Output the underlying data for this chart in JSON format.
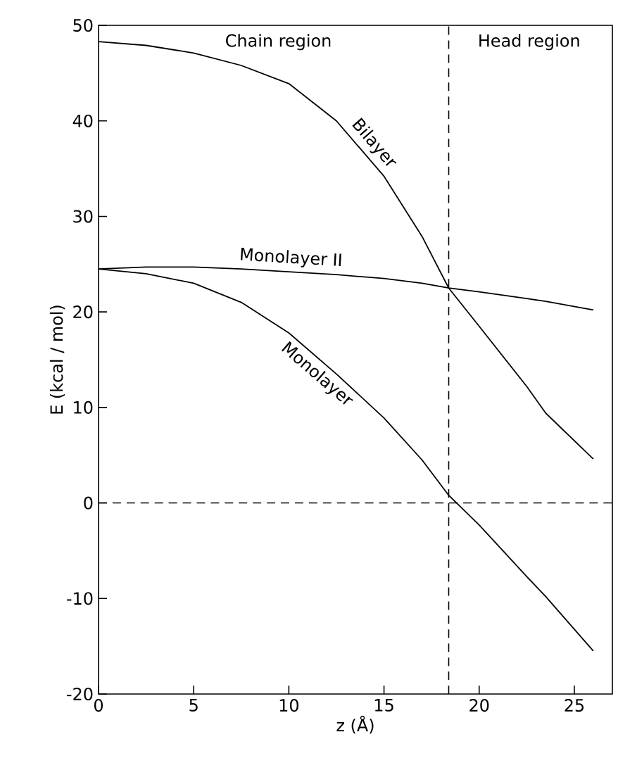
{
  "chart_data": {
    "type": "line",
    "xlabel": "z (Å)",
    "ylabel": "E (kcal / mol)",
    "xlim": [
      0,
      27
    ],
    "ylim": [
      -20,
      50
    ],
    "xticks": [
      0,
      5,
      10,
      15,
      20,
      25
    ],
    "yticks": [
      -20,
      -10,
      0,
      10,
      20,
      30,
      40,
      50
    ],
    "x": [
      0,
      2.5,
      5,
      7.5,
      10,
      12.5,
      15,
      17,
      18.4,
      20,
      22.5,
      23.5,
      26
    ],
    "series": [
      {
        "name": "Bilayer",
        "color": "#000000",
        "values": [
          48.3,
          47.9,
          47.1,
          45.8,
          43.9,
          40.0,
          34.2,
          27.9,
          22.5,
          18.5,
          12.2,
          9.4,
          4.6
        ]
      },
      {
        "name": "Monolayer II",
        "color": "#000000",
        "values": [
          24.5,
          24.7,
          24.7,
          24.5,
          24.2,
          23.9,
          23.5,
          23.0,
          22.5,
          22.1,
          21.4,
          21.1,
          20.2
        ]
      },
      {
        "name": "Monolayer",
        "color": "#000000",
        "values": [
          24.5,
          24.0,
          23.0,
          21.0,
          17.8,
          13.5,
          8.9,
          4.5,
          0.8,
          -2.3,
          -7.7,
          -9.8,
          -15.5
        ]
      }
    ],
    "ref_lines": [
      {
        "axis": "x",
        "value": 18.4,
        "line_style": "dashed"
      },
      {
        "axis": "y",
        "value": 0,
        "line_style": "dashed"
      }
    ],
    "annotations": [
      "Chain region",
      "Head region"
    ],
    "grid": false,
    "legend": false,
    "marker": "none",
    "line_style": "solid"
  }
}
